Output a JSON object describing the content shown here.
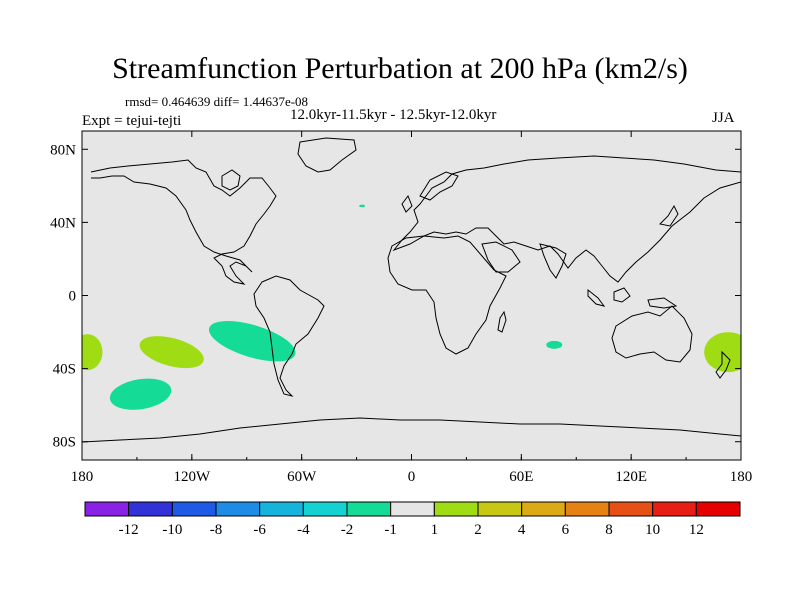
{
  "header": {
    "title": "Streamfunction Perturbation at 200 hPa (km2/s)",
    "stats": "rmsd= 0.464639 diff= 1.44637e-08",
    "period": "12.0kyr-11.5kyr - 12.5kyr-12.0kyr",
    "experiment": "Expt = tejui-tejti",
    "season": "JJA"
  },
  "chart_data": {
    "type": "heatmap",
    "projection": "cylindrical equidistant",
    "title": "Streamfunction Perturbation at 200 hPa (km2/s)",
    "subtitle": "12.0kyr-11.5kyr - 12.5kyr-12.0kyr",
    "variable": "streamfunction perturbation",
    "units": "km2/s",
    "level": "200 hPa",
    "season": "JJA",
    "xlim": [
      -180,
      180
    ],
    "ylim": [
      -90,
      90
    ],
    "x_ticks": [
      {
        "value": -180,
        "label": "180"
      },
      {
        "value": -120,
        "label": "120W"
      },
      {
        "value": -60,
        "label": "60W"
      },
      {
        "value": 0,
        "label": "0"
      },
      {
        "value": 60,
        "label": "60E"
      },
      {
        "value": 120,
        "label": "120E"
      },
      {
        "value": 180,
        "label": "180"
      }
    ],
    "y_ticks": [
      {
        "value": 80,
        "label": "80N"
      },
      {
        "value": 40,
        "label": "40N"
      },
      {
        "value": 0,
        "label": "0"
      },
      {
        "value": -40,
        "label": "40S"
      },
      {
        "value": -80,
        "label": "80S"
      }
    ],
    "background_color": "#e6e6e6",
    "colorbar": {
      "labels": [
        "-12",
        "-10",
        "-8",
        "-6",
        "-4",
        "-2",
        "-1",
        "1",
        "2",
        "4",
        "6",
        "8",
        "10",
        "12"
      ],
      "colors": [
        "#8a22e6",
        "#3232d8",
        "#1e5ae6",
        "#1e8ce6",
        "#14b4dc",
        "#14d2d2",
        "#14dc96",
        "#e6e6e6",
        "#a0dc14",
        "#c8c814",
        "#dcaa14",
        "#e68214",
        "#e65014",
        "#e61e14",
        "#e60000"
      ]
    },
    "anomalies": [
      {
        "name": "south-pacific-positive-west",
        "lon_center": -177,
        "lat_center": -31,
        "value_range": "1 to 2",
        "color": "#a0dc14"
      },
      {
        "name": "south-pacific-positive-central",
        "lon_center": -131,
        "lat_center": -31,
        "value_range": "1 to 2",
        "color": "#a0dc14"
      },
      {
        "name": "south-pacific-negative-east",
        "lon_center": -87,
        "lat_center": -25,
        "value_range": "-2 to -1",
        "color": "#14dc96"
      },
      {
        "name": "south-pacific-negative-southwest",
        "lon_center": -148,
        "lat_center": -54,
        "value_range": "-2 to -1",
        "color": "#14dc96"
      },
      {
        "name": "indian-ocean-negative",
        "lon_center": 78,
        "lat_center": -27,
        "value_range": "-2 to -1",
        "color": "#14dc96"
      },
      {
        "name": "atlantic-negative-small",
        "lon_center": -27,
        "lat_center": 49,
        "value_range": "-2 to -1",
        "color": "#14dc96"
      },
      {
        "name": "tasman-sea-positive",
        "lon_center": 173,
        "lat_center": -31,
        "value_range": "1 to 2",
        "color": "#a0dc14"
      }
    ]
  }
}
